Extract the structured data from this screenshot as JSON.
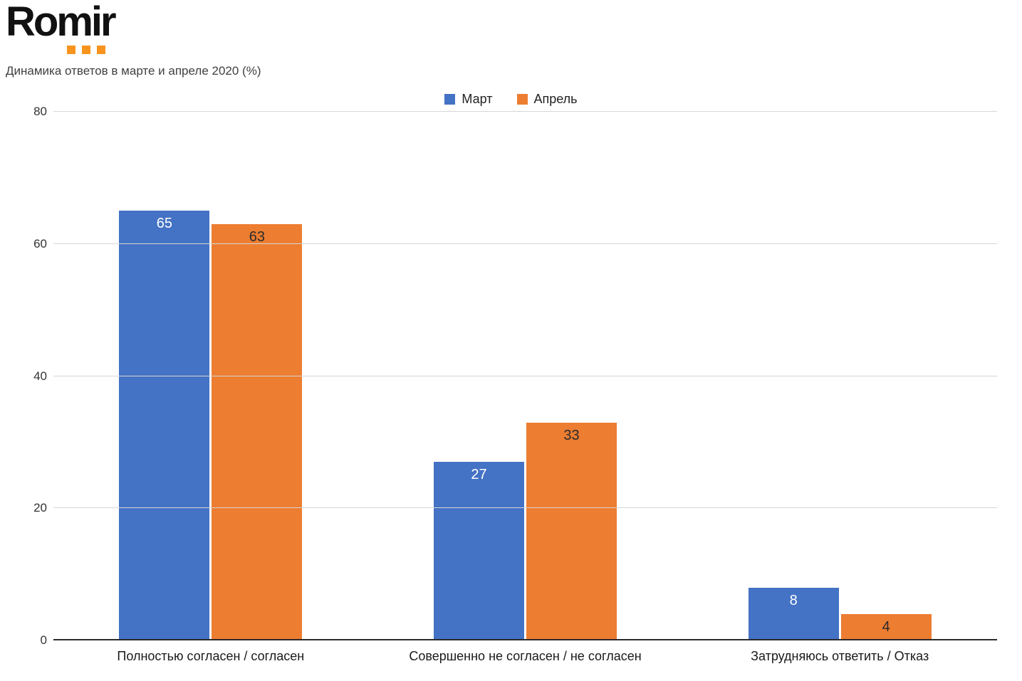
{
  "logo": {
    "text": "Romir",
    "dot_color": "#F7941D"
  },
  "title": "Динамика ответов в марте и апреле 2020 (%)",
  "chart_data": {
    "type": "bar",
    "title": "Динамика ответов в марте и апреле 2020 (%)",
    "categories": [
      "Полностью согласен / согласен",
      "Совершенно не согласен / не согласен",
      "Затрудняюсь ответить / Отказ"
    ],
    "series": [
      {
        "name": "Март",
        "color": "#4472C4",
        "label_color": "#ffffff",
        "values": [
          65,
          27,
          8
        ]
      },
      {
        "name": "Апрель",
        "color": "#ED7D31",
        "label_color": "#2b2b2b",
        "values": [
          63,
          33,
          4
        ]
      }
    ],
    "ylim": [
      0,
      80
    ],
    "yticks": [
      0,
      20,
      40,
      60,
      80
    ],
    "grid": true,
    "legend_position": "top-center",
    "xlabel": "",
    "ylabel": ""
  }
}
